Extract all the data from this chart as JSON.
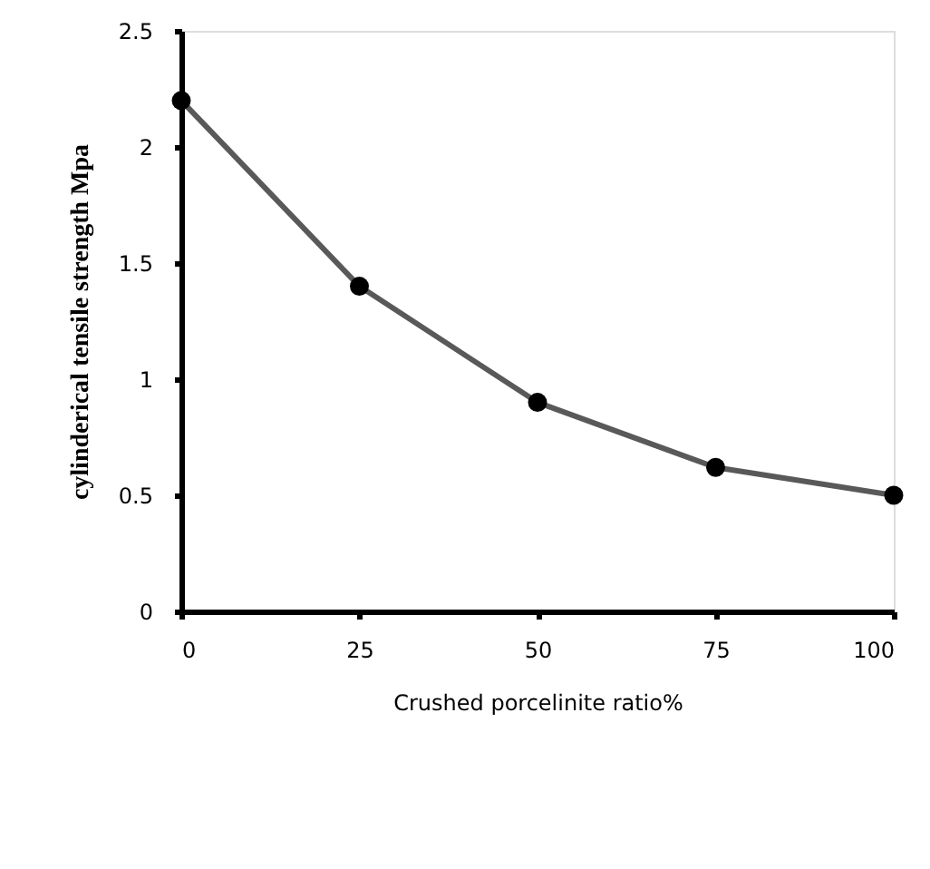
{
  "chart_data": {
    "type": "line",
    "xlabel": "Crushed porcelinite ratio%",
    "ylabel": "cylinderical  tensile strength Mpa",
    "x": [
      0,
      25,
      50,
      75,
      100
    ],
    "series": [
      {
        "color": "#595959",
        "values": [
          2.2,
          1.4,
          0.9,
          0.62,
          0.5
        ]
      }
    ],
    "xlim": [
      0,
      100
    ],
    "xticks": [
      0,
      25,
      50,
      75,
      100
    ],
    "ylim": [
      0,
      2.5
    ],
    "yticks": [
      0,
      0.5,
      1,
      1.5,
      2,
      2.5
    ],
    "marker": "circle",
    "line_style": "solid",
    "grid": false
  }
}
